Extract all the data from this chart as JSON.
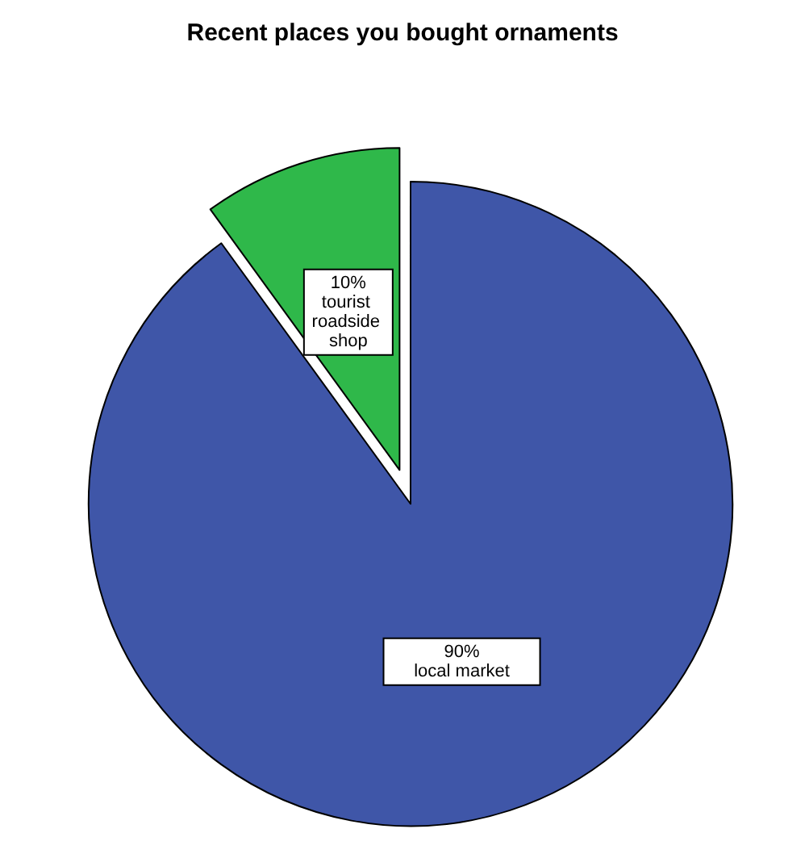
{
  "chart_data": {
    "type": "pie",
    "title": "Recent places you bought ornaments",
    "categories": [
      "local market",
      "tourist roadside shop"
    ],
    "values": [
      90,
      10
    ],
    "value_labels": [
      "90%",
      "10%"
    ],
    "colors": [
      "#3f56a8",
      "#2fb84a"
    ],
    "legend": false
  }
}
